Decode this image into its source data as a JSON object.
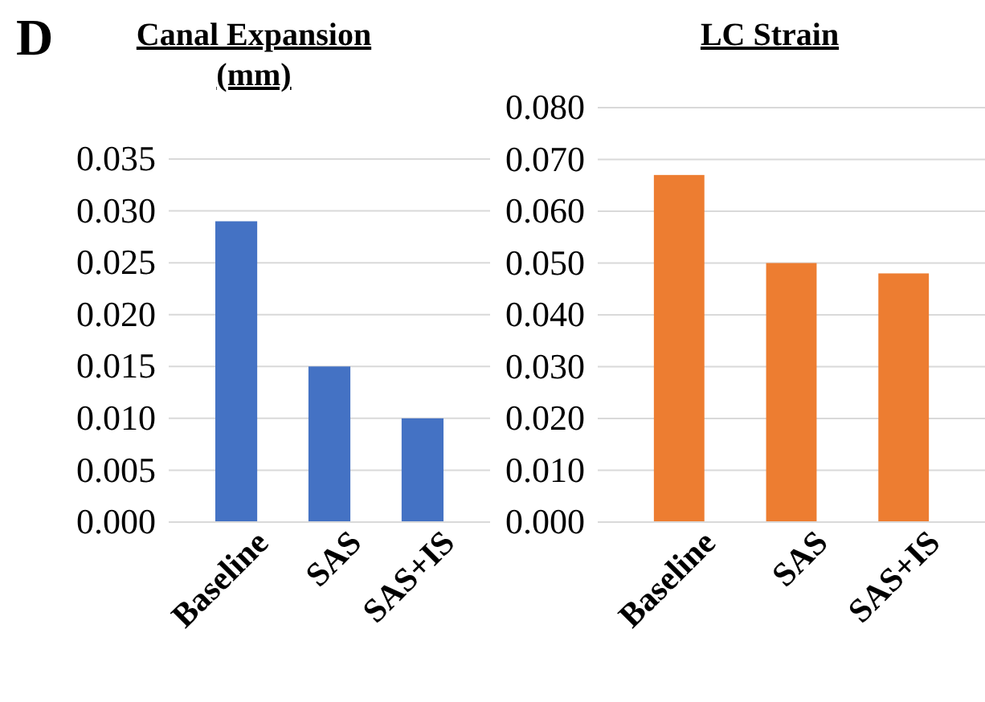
{
  "chart_data": [
    {
      "type": "bar",
      "title": "Canal Expansion (mm)",
      "annotations": [
        "D"
      ],
      "categories": [
        "Baseline",
        "SAS",
        "SAS+IS"
      ],
      "values": [
        0.029,
        0.015,
        0.01
      ],
      "color": "#4472c4",
      "ylim": [
        0,
        0.035
      ],
      "yticks": [
        {
          "value": 0,
          "label": "0.000"
        },
        {
          "value": 0.005,
          "label": "0.005"
        },
        {
          "value": 0.01,
          "label": "0.010"
        },
        {
          "value": 0.015,
          "label": "0.015"
        },
        {
          "value": 0.02,
          "label": "0.020"
        },
        {
          "value": 0.025,
          "label": "0.025"
        },
        {
          "value": 0.03,
          "label": "0.030"
        },
        {
          "value": 0.035,
          "label": "0.035"
        }
      ],
      "grid": "y"
    },
    {
      "type": "bar",
      "title": "LC Strain",
      "categories": [
        "Baseline",
        "SAS",
        "SAS+IS"
      ],
      "values": [
        0.067,
        0.05,
        0.048
      ],
      "color": "#ed7d31",
      "ylim": [
        0,
        0.08
      ],
      "yticks": [
        {
          "value": 0,
          "label": "0.000"
        },
        {
          "value": 0.01,
          "label": "0.010"
        },
        {
          "value": 0.02,
          "label": "0.020"
        },
        {
          "value": 0.03,
          "label": "0.030"
        },
        {
          "value": 0.04,
          "label": "0.040"
        },
        {
          "value": 0.05,
          "label": "0.050"
        },
        {
          "value": 0.06,
          "label": "0.060"
        },
        {
          "value": 0.07,
          "label": "0.070"
        },
        {
          "value": 0.08,
          "label": "0.080"
        }
      ],
      "grid": "y"
    }
  ]
}
